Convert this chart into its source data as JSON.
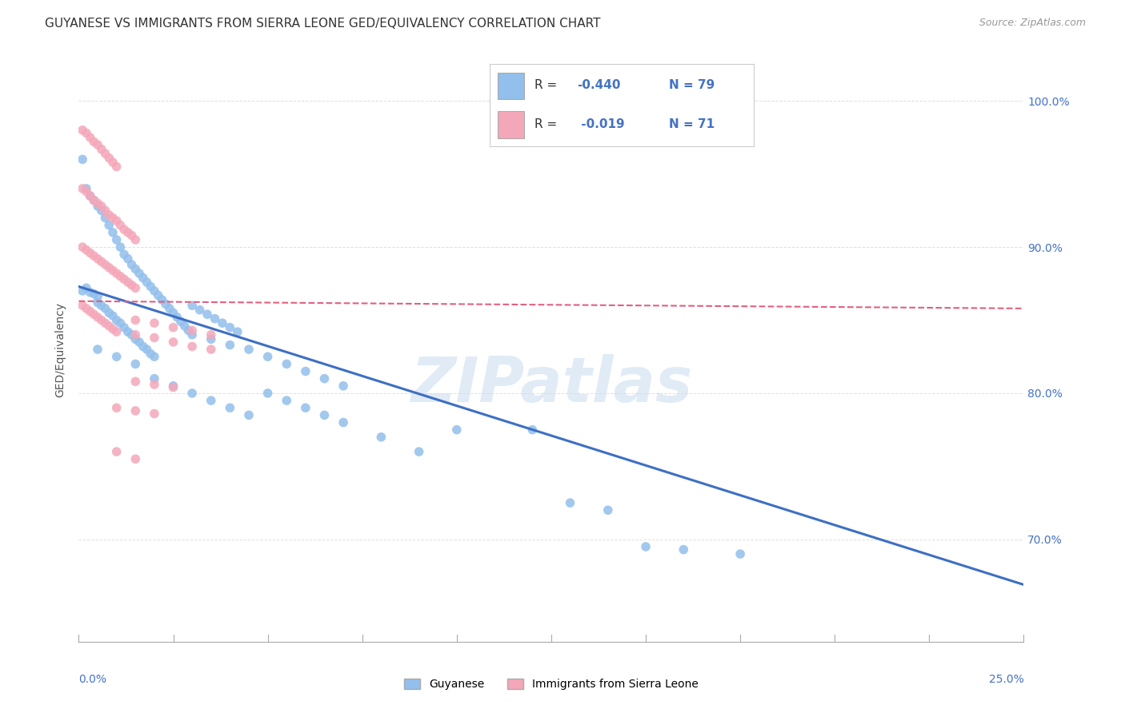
{
  "title": "GUYANESE VS IMMIGRANTS FROM SIERRA LEONE GED/EQUIVALENCY CORRELATION CHART",
  "source": "Source: ZipAtlas.com",
  "ylabel": "GED/Equivalency",
  "ytick_labels": [
    "70.0%",
    "80.0%",
    "90.0%",
    "100.0%"
  ],
  "ytick_values": [
    0.7,
    0.8,
    0.9,
    1.0
  ],
  "xmin": 0.0,
  "xmax": 0.25,
  "ymin": 0.63,
  "ymax": 1.03,
  "blue_color": "#92BFEC",
  "pink_color": "#F4A7B9",
  "blue_line_color": "#3D6FC4",
  "pink_line_color": "#E06080",
  "blue_scatter": [
    [
      0.001,
      0.87
    ],
    [
      0.002,
      0.872
    ],
    [
      0.003,
      0.869
    ],
    [
      0.004,
      0.868
    ],
    [
      0.005,
      0.866
    ],
    [
      0.005,
      0.862
    ],
    [
      0.006,
      0.86
    ],
    [
      0.007,
      0.858
    ],
    [
      0.008,
      0.855
    ],
    [
      0.009,
      0.853
    ],
    [
      0.01,
      0.85
    ],
    [
      0.011,
      0.848
    ],
    [
      0.012,
      0.845
    ],
    [
      0.013,
      0.842
    ],
    [
      0.014,
      0.84
    ],
    [
      0.015,
      0.837
    ],
    [
      0.016,
      0.835
    ],
    [
      0.017,
      0.832
    ],
    [
      0.018,
      0.83
    ],
    [
      0.019,
      0.827
    ],
    [
      0.02,
      0.825
    ],
    [
      0.001,
      0.96
    ],
    [
      0.002,
      0.94
    ],
    [
      0.003,
      0.935
    ],
    [
      0.004,
      0.932
    ],
    [
      0.005,
      0.928
    ],
    [
      0.006,
      0.925
    ],
    [
      0.007,
      0.92
    ],
    [
      0.008,
      0.915
    ],
    [
      0.009,
      0.91
    ],
    [
      0.01,
      0.905
    ],
    [
      0.011,
      0.9
    ],
    [
      0.012,
      0.895
    ],
    [
      0.013,
      0.892
    ],
    [
      0.014,
      0.888
    ],
    [
      0.015,
      0.885
    ],
    [
      0.016,
      0.882
    ],
    [
      0.017,
      0.879
    ],
    [
      0.018,
      0.876
    ],
    [
      0.019,
      0.873
    ],
    [
      0.02,
      0.87
    ],
    [
      0.021,
      0.867
    ],
    [
      0.022,
      0.864
    ],
    [
      0.023,
      0.861
    ],
    [
      0.024,
      0.858
    ],
    [
      0.025,
      0.855
    ],
    [
      0.026,
      0.852
    ],
    [
      0.027,
      0.849
    ],
    [
      0.028,
      0.846
    ],
    [
      0.029,
      0.843
    ],
    [
      0.03,
      0.84
    ],
    [
      0.035,
      0.837
    ],
    [
      0.04,
      0.833
    ],
    [
      0.045,
      0.83
    ],
    [
      0.05,
      0.825
    ],
    [
      0.055,
      0.82
    ],
    [
      0.06,
      0.815
    ],
    [
      0.065,
      0.81
    ],
    [
      0.07,
      0.805
    ],
    [
      0.03,
      0.86
    ],
    [
      0.032,
      0.857
    ],
    [
      0.034,
      0.854
    ],
    [
      0.036,
      0.851
    ],
    [
      0.038,
      0.848
    ],
    [
      0.04,
      0.845
    ],
    [
      0.042,
      0.842
    ],
    [
      0.05,
      0.8
    ],
    [
      0.055,
      0.795
    ],
    [
      0.06,
      0.79
    ],
    [
      0.065,
      0.785
    ],
    [
      0.07,
      0.78
    ],
    [
      0.08,
      0.77
    ],
    [
      0.09,
      0.76
    ],
    [
      0.1,
      0.775
    ],
    [
      0.12,
      0.775
    ],
    [
      0.13,
      0.725
    ],
    [
      0.14,
      0.72
    ],
    [
      0.15,
      0.695
    ],
    [
      0.16,
      0.693
    ],
    [
      0.175,
      0.69
    ],
    [
      0.005,
      0.83
    ],
    [
      0.01,
      0.825
    ],
    [
      0.015,
      0.82
    ],
    [
      0.02,
      0.81
    ],
    [
      0.025,
      0.805
    ],
    [
      0.03,
      0.8
    ],
    [
      0.035,
      0.795
    ],
    [
      0.04,
      0.79
    ],
    [
      0.045,
      0.785
    ]
  ],
  "pink_scatter": [
    [
      0.001,
      0.98
    ],
    [
      0.002,
      0.978
    ],
    [
      0.003,
      0.975
    ],
    [
      0.004,
      0.972
    ],
    [
      0.005,
      0.97
    ],
    [
      0.006,
      0.967
    ],
    [
      0.007,
      0.964
    ],
    [
      0.008,
      0.961
    ],
    [
      0.009,
      0.958
    ],
    [
      0.01,
      0.955
    ],
    [
      0.001,
      0.94
    ],
    [
      0.002,
      0.938
    ],
    [
      0.003,
      0.935
    ],
    [
      0.004,
      0.932
    ],
    [
      0.005,
      0.93
    ],
    [
      0.006,
      0.928
    ],
    [
      0.007,
      0.925
    ],
    [
      0.008,
      0.922
    ],
    [
      0.009,
      0.92
    ],
    [
      0.01,
      0.918
    ],
    [
      0.011,
      0.915
    ],
    [
      0.012,
      0.912
    ],
    [
      0.013,
      0.91
    ],
    [
      0.014,
      0.908
    ],
    [
      0.015,
      0.905
    ],
    [
      0.001,
      0.9
    ],
    [
      0.002,
      0.898
    ],
    [
      0.003,
      0.896
    ],
    [
      0.004,
      0.894
    ],
    [
      0.005,
      0.892
    ],
    [
      0.006,
      0.89
    ],
    [
      0.007,
      0.888
    ],
    [
      0.008,
      0.886
    ],
    [
      0.009,
      0.884
    ],
    [
      0.01,
      0.882
    ],
    [
      0.011,
      0.88
    ],
    [
      0.012,
      0.878
    ],
    [
      0.013,
      0.876
    ],
    [
      0.014,
      0.874
    ],
    [
      0.015,
      0.872
    ],
    [
      0.001,
      0.86
    ],
    [
      0.002,
      0.858
    ],
    [
      0.003,
      0.856
    ],
    [
      0.004,
      0.854
    ],
    [
      0.005,
      0.852
    ],
    [
      0.006,
      0.85
    ],
    [
      0.007,
      0.848
    ],
    [
      0.008,
      0.846
    ],
    [
      0.009,
      0.844
    ],
    [
      0.01,
      0.842
    ],
    [
      0.015,
      0.84
    ],
    [
      0.02,
      0.838
    ],
    [
      0.025,
      0.835
    ],
    [
      0.03,
      0.832
    ],
    [
      0.035,
      0.83
    ],
    [
      0.015,
      0.808
    ],
    [
      0.02,
      0.806
    ],
    [
      0.025,
      0.804
    ],
    [
      0.01,
      0.79
    ],
    [
      0.015,
      0.788
    ],
    [
      0.02,
      0.786
    ],
    [
      0.01,
      0.76
    ],
    [
      0.015,
      0.755
    ],
    [
      0.015,
      0.85
    ],
    [
      0.02,
      0.848
    ],
    [
      0.025,
      0.845
    ],
    [
      0.03,
      0.843
    ],
    [
      0.035,
      0.84
    ]
  ],
  "blue_line_x": [
    0.0,
    0.25
  ],
  "blue_line_y": [
    0.873,
    0.669
  ],
  "pink_line_x": [
    0.0,
    0.25
  ],
  "pink_line_y": [
    0.863,
    0.858
  ],
  "watermark": "ZIPatlas",
  "background_color": "#ffffff",
  "grid_color": "#dddddd"
}
